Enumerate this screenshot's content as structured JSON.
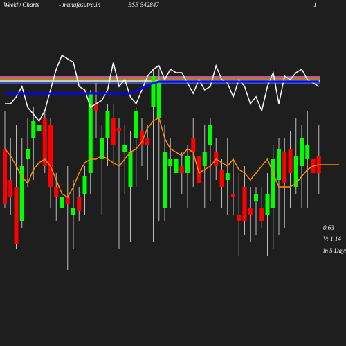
{
  "chart_data": {
    "type": "candlestick",
    "title": "Weekly Charts",
    "source": "- munafasutra.in",
    "symbol": "BSE 542847",
    "corner_label": "1",
    "annotations": [
      "0.63",
      "V: 1.14",
      "in 5 Days"
    ],
    "ylim": [
      0,
      500
    ],
    "up_color": "#00ff00",
    "down_color": "#ff0000",
    "open": [
      285,
      240,
      230,
      180,
      270,
      300,
      310,
      330,
      320,
      230,
      200,
      215,
      190,
      215,
      220,
      250,
      350,
      270,
      300,
      330,
      315,
      280,
      230,
      300,
      310,
      300,
      345,
      330,
      200,
      260,
      250,
      260,
      250,
      300,
      275,
      260,
      290,
      280,
      255,
      240,
      220,
      190,
      230,
      200,
      210,
      200,
      190,
      200,
      240,
      280,
      285,
      230,
      260,
      270,
      270,
      275
    ],
    "high": [
      340,
      300,
      320,
      300,
      330,
      345,
      330,
      340,
      330,
      250,
      250,
      260,
      240,
      230,
      260,
      370,
      380,
      320,
      350,
      350,
      330,
      320,
      310,
      345,
      330,
      320,
      400,
      400,
      320,
      300,
      290,
      280,
      290,
      330,
      290,
      320,
      330,
      300,
      270,
      300,
      270,
      250,
      260,
      230,
      230,
      230,
      250,
      290,
      300,
      300,
      310,
      330,
      320,
      340,
      275,
      320
    ],
    "low": [
      200,
      190,
      140,
      170,
      230,
      240,
      260,
      250,
      200,
      180,
      150,
      110,
      140,
      180,
      190,
      220,
      300,
      190,
      260,
      260,
      140,
      220,
      150,
      230,
      260,
      240,
      150,
      180,
      180,
      200,
      230,
      220,
      200,
      230,
      210,
      200,
      210,
      240,
      200,
      190,
      190,
      130,
      160,
      150,
      160,
      170,
      130,
      140,
      160,
      170,
      200,
      220,
      200,
      200,
      220,
      220
    ],
    "close": [
      205,
      215,
      148,
      260,
      285,
      325,
      320,
      260,
      230,
      215,
      215,
      205,
      200,
      195,
      245,
      365,
      340,
      300,
      340,
      290,
      310,
      290,
      280,
      340,
      290,
      290,
      390,
      380,
      280,
      270,
      270,
      250,
      275,
      280,
      235,
      280,
      320,
      260,
      230,
      250,
      215,
      180,
      180,
      190,
      220,
      180,
      220,
      270,
      285,
      235,
      250,
      275,
      300,
      290,
      250,
      250
    ],
    "series": [
      {
        "color": "#ffffff",
        "values": [
          350,
          350,
          360,
          375,
          345,
          335,
          325,
          340,
          370,
          400,
          420,
          415,
          410,
          375,
          370,
          345,
          350,
          355,
          370,
          410,
          375,
          385,
          360,
          350,
          370,
          390,
          400,
          405,
          385,
          400,
          395,
          395,
          380,
          365,
          385,
          370,
          375,
          405,
          385,
          380,
          360,
          385,
          375,
          350,
          360,
          340,
          375,
          395,
          350,
          390,
          385,
          395,
          400,
          385,
          380,
          375
        ]
      },
      {
        "color": "#ff8c00",
        "values": [
          285,
          275,
          260,
          245,
          235,
          255,
          265,
          270,
          260,
          240,
          220,
          215,
          230,
          250,
          265,
          270,
          270,
          275,
          270,
          265,
          260,
          270,
          280,
          285,
          295,
          315,
          325,
          330,
          300,
          285,
          280,
          275,
          285,
          280,
          250,
          255,
          260,
          270,
          265,
          260,
          270,
          255,
          250,
          240,
          250,
          260,
          270,
          250,
          230,
          230,
          230,
          235,
          245,
          255,
          260,
          262
        ]
      },
      {
        "color": "#0000ff",
        "values": [
          365,
          365,
          365,
          365,
          365,
          365,
          365,
          365,
          365,
          365,
          365,
          365,
          365,
          365,
          365,
          365,
          365,
          365,
          365,
          365,
          365,
          365,
          365,
          368,
          372,
          376,
          380,
          382,
          382,
          382,
          382,
          382,
          382,
          382,
          382,
          382,
          382,
          382,
          382,
          382,
          382,
          382,
          382,
          382,
          382,
          382,
          382,
          382,
          382,
          382,
          382,
          382,
          382,
          382,
          382,
          382
        ]
      }
    ],
    "levels": [
      {
        "value": 389,
        "color": "#ff69b4"
      },
      {
        "value": 386,
        "color": "#daa520"
      },
      {
        "value": 383,
        "color": "#ffffff"
      },
      {
        "value": 380,
        "color": "#4169e1"
      }
    ]
  }
}
